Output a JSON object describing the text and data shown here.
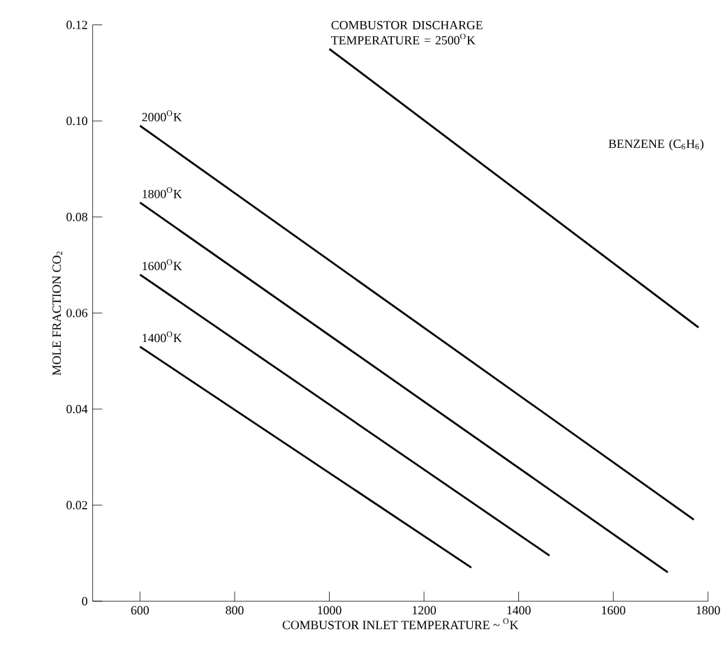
{
  "chart_data": {
    "type": "line",
    "xlabel": "COMBUSTOR INLET TEMPERATURE ~ $^{O}$K",
    "ylabel": "MOLE FRACTION   CO$_{2}$",
    "annotations": [
      "BENZENE (C$_{6}$H$_{6}$)"
    ],
    "xlim": [
      500,
      1800
    ],
    "ylim": [
      0,
      0.12
    ],
    "xticks": [
      600,
      800,
      1000,
      1200,
      1400,
      1600,
      1800
    ],
    "yticks": [
      0,
      0.02,
      0.04,
      0.06,
      0.08,
      {
        "value": 0.1,
        "label": "0.10"
      },
      0.12
    ],
    "grid": false,
    "legend": false,
    "marker": "none",
    "line_style": "solid",
    "series": [
      {
        "name": "COMBUSTOR DISCHARGE TEMPERATURE = 2500$^{O}$K",
        "color": "#000000",
        "x": [
          1000,
          1780
        ],
        "values": [
          0.115,
          0.057
        ]
      },
      {
        "name": "2000$^{O}$K",
        "color": "#000000",
        "x": [
          600,
          1770
        ],
        "values": [
          0.099,
          0.017
        ]
      },
      {
        "name": "1800$^{O}$K",
        "color": "#000000",
        "x": [
          600,
          1715
        ],
        "values": [
          0.083,
          0.006
        ]
      },
      {
        "name": "1600$^{O}$K",
        "color": "#000000",
        "x": [
          600,
          1465
        ],
        "values": [
          0.068,
          0.0095
        ]
      },
      {
        "name": "1400$^{O}$K",
        "color": "#000000",
        "x": [
          600,
          1300
        ],
        "values": [
          0.053,
          0.007
        ]
      }
    ]
  }
}
